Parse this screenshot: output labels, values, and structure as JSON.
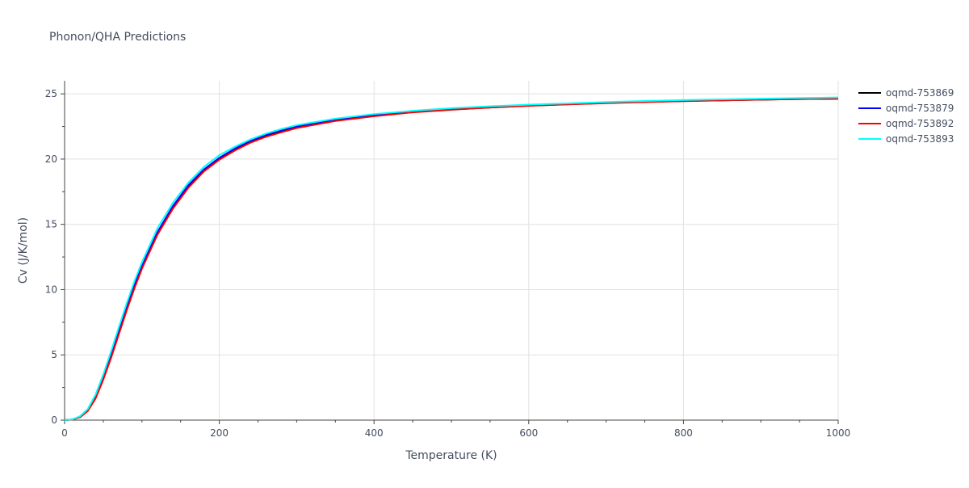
{
  "chart_data": {
    "type": "line",
    "title": "Phonon/QHA Predictions",
    "xlabel": "Temperature (K)",
    "ylabel": "Cv (J/K/mol)",
    "xlim": [
      0,
      1000
    ],
    "ylim": [
      0,
      26
    ],
    "x_ticks": [
      0,
      200,
      400,
      600,
      800,
      1000
    ],
    "y_ticks": [
      0,
      5,
      10,
      15,
      20,
      25
    ],
    "grid": true,
    "legend_position": "right",
    "x": [
      0,
      10,
      20,
      30,
      40,
      50,
      60,
      70,
      80,
      90,
      100,
      120,
      140,
      160,
      180,
      200,
      220,
      240,
      260,
      280,
      300,
      350,
      400,
      450,
      500,
      550,
      600,
      650,
      700,
      750,
      800,
      850,
      900,
      950,
      1000
    ],
    "series": [
      {
        "name": "oqmd-753869",
        "color": "#000000",
        "values": [
          0,
          0.05,
          0.25,
          0.75,
          1.75,
          3.2,
          4.9,
          6.7,
          8.5,
          10.2,
          11.7,
          14.3,
          16.3,
          17.9,
          19.1,
          20.0,
          20.7,
          21.3,
          21.75,
          22.1,
          22.4,
          22.95,
          23.3,
          23.6,
          23.8,
          23.95,
          24.1,
          24.2,
          24.3,
          24.38,
          24.45,
          24.5,
          24.55,
          24.6,
          24.62
        ]
      },
      {
        "name": "oqmd-753879",
        "color": "#0000ff",
        "values": [
          0,
          0.05,
          0.25,
          0.78,
          1.8,
          3.3,
          5.0,
          6.8,
          8.6,
          10.3,
          11.8,
          14.4,
          16.4,
          18.0,
          19.2,
          20.1,
          20.8,
          21.4,
          21.85,
          22.2,
          22.5,
          23.02,
          23.38,
          23.65,
          23.85,
          24.0,
          24.12,
          24.22,
          24.32,
          24.4,
          24.47,
          24.52,
          24.57,
          24.62,
          24.65
        ]
      },
      {
        "name": "oqmd-753892",
        "color": "#ff0000",
        "values": [
          0,
          0.04,
          0.22,
          0.7,
          1.65,
          3.1,
          4.75,
          6.55,
          8.35,
          10.05,
          11.6,
          14.2,
          16.2,
          17.8,
          19.05,
          19.95,
          20.65,
          21.25,
          21.7,
          22.05,
          22.38,
          22.92,
          23.28,
          23.58,
          23.78,
          23.95,
          24.08,
          24.19,
          24.28,
          24.37,
          24.44,
          24.5,
          24.55,
          24.6,
          24.63
        ]
      },
      {
        "name": "oqmd-753893",
        "color": "#00ffff",
        "values": [
          0,
          0.06,
          0.3,
          0.85,
          1.95,
          3.5,
          5.25,
          7.1,
          8.9,
          10.6,
          12.1,
          14.7,
          16.65,
          18.2,
          19.4,
          20.3,
          20.95,
          21.5,
          21.95,
          22.3,
          22.6,
          23.1,
          23.45,
          23.7,
          23.9,
          24.05,
          24.17,
          24.27,
          24.37,
          24.45,
          24.52,
          24.58,
          24.63,
          24.68,
          24.72
        ]
      }
    ]
  }
}
